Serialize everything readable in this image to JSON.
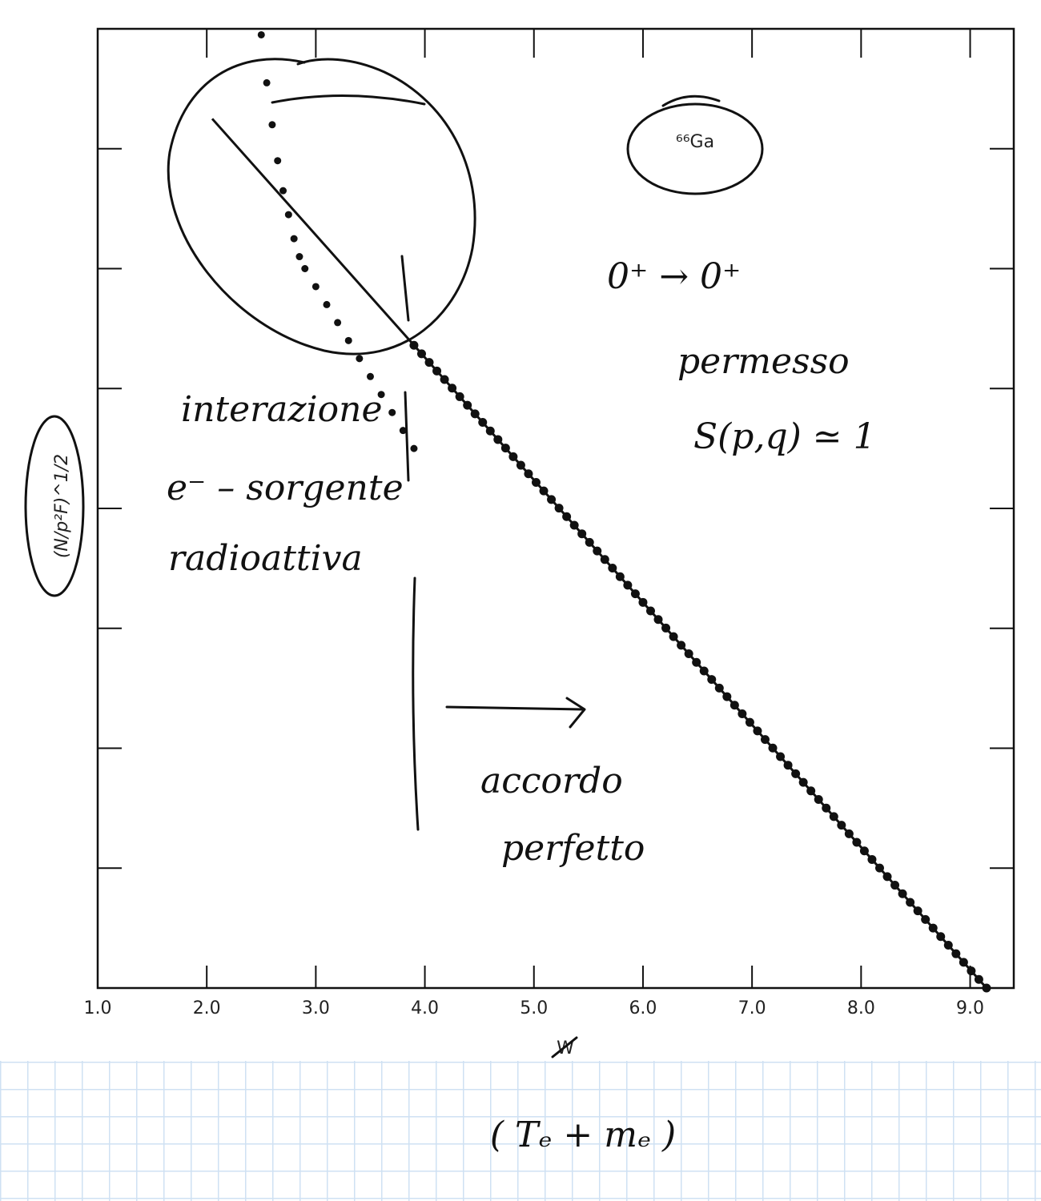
{
  "chart_data": {
    "type": "scatter",
    "xlabel": "W",
    "ylabel": "(N/p²F)^1/2",
    "xlim": [
      1.0,
      9.4
    ],
    "ylim": [
      0,
      8
    ],
    "x_ticks": [
      "1.0",
      "2.0",
      "3.0",
      "4.0",
      "5.0",
      "6.0",
      "7.0",
      "8.0",
      "9.0"
    ],
    "y_tick_count": 8,
    "series": [
      {
        "kind": "fit-line",
        "x": [
          2.05,
          9.15
        ],
        "y": [
          7.25,
          0.0
        ]
      },
      {
        "kind": "points",
        "x": [
          2.5,
          2.55,
          2.6,
          2.65,
          2.7,
          2.75,
          2.8,
          2.85,
          2.9,
          3.0,
          3.1,
          3.2,
          3.3,
          3.4,
          3.5,
          3.6,
          3.7,
          3.8,
          3.9
        ],
        "y": [
          7.95,
          7.55,
          7.2,
          6.9,
          6.65,
          6.45,
          6.25,
          6.1,
          6.0,
          5.85,
          5.7,
          5.55,
          5.4,
          5.25,
          5.1,
          4.95,
          4.8,
          4.65,
          4.5
        ]
      },
      {
        "kind": "points-on-line",
        "x_start": 3.9,
        "x_end": 9.15,
        "step": 0.07
      }
    ],
    "annotations": {
      "inset_label": "⁶⁶Ga",
      "transition": "0⁺ → 0⁺",
      "permesso": "permesso",
      "shape_factor": "S(p,q) ≃ 1",
      "interaction_1": "interazione",
      "interaction_2": "e⁻ – sorgente",
      "interaction_3": "radioattiva",
      "agreement_1": "accordo",
      "agreement_2": "perfetto",
      "x_note": "( Tₑ + mₑ )"
    }
  }
}
